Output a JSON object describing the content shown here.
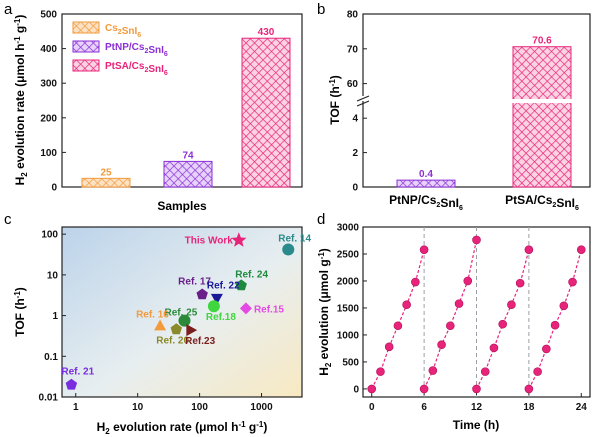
{
  "panel_labels": {
    "a": "a",
    "b": "b",
    "c": "c",
    "d": "d"
  },
  "colors": {
    "orange": "#f39a3b",
    "purple": "#8b2fd6",
    "pink": "#e8237a",
    "frame": "#222222"
  },
  "chart_data": [
    {
      "id": "a",
      "type": "bar",
      "ylabel": "H2 evolution rate (μmol h-1 g-1)",
      "xlabel": "Samples",
      "categories": [
        "Cs2SnI6",
        "PtNP/Cs2SnI6",
        "PtSA/Cs2SnI6"
      ],
      "values": [
        25,
        74,
        430
      ],
      "data_labels": [
        "25",
        "74",
        "430"
      ],
      "legend": [
        "Cs2SnI6",
        "PtNP/Cs2SnI6",
        "PtSA/Cs2SnI6"
      ],
      "legend_placement": "top-left",
      "ylim": [
        0,
        500
      ],
      "yticks": [
        "0",
        "100",
        "200",
        "300",
        "400",
        "500"
      ],
      "colors": [
        "#f39a3b",
        "#8b2fd6",
        "#e8237a"
      ],
      "grid": false
    },
    {
      "id": "b",
      "type": "bar",
      "ylabel": "TOF (h-1)",
      "categories": [
        "PtNP/Cs2SnI6",
        "PtSA/Cs2SnI6"
      ],
      "values": [
        0.4,
        70.6
      ],
      "data_labels": [
        "0.4",
        "70.6"
      ],
      "axis_break": true,
      "yticks_lower": [
        "0",
        "2",
        "4"
      ],
      "yticks_upper": [
        "60",
        "70",
        "80"
      ],
      "ylim_lower": [
        0,
        5
      ],
      "ylim_upper": [
        55,
        80
      ],
      "colors": [
        "#8b2fd6",
        "#e8237a"
      ],
      "grid": false
    },
    {
      "id": "c",
      "type": "scatter",
      "xscale": "log",
      "yscale": "log",
      "xlabel": "H2 evolution rate (μmol h-1 g-1)",
      "ylabel": "TOF (h-1)",
      "xticks": [
        "1",
        "10",
        "100",
        "1000"
      ],
      "yticks": [
        "0.01",
        "0.1",
        "1",
        "10",
        "100"
      ],
      "xlim": [
        0.6,
        4500
      ],
      "ylim": [
        0.01,
        150
      ],
      "points": [
        {
          "label": "This Work",
          "x": 430,
          "y": 70.6,
          "shape": "star",
          "color": "#e8237a"
        },
        {
          "label": "Ref. 14",
          "x": 2700,
          "y": 42,
          "shape": "circle",
          "color": "#2a8a8c"
        },
        {
          "label": "Ref. 24",
          "x": 470,
          "y": 5.5,
          "shape": "pentagon",
          "color": "#1e8a3e"
        },
        {
          "label": "Ref. 17",
          "x": 110,
          "y": 3.3,
          "shape": "pentagon",
          "color": "#6a1e8a"
        },
        {
          "label": "Ref. 22",
          "x": 190,
          "y": 2.6,
          "shape": "triangle-down",
          "color": "#1a1a99"
        },
        {
          "label": "Ref.18",
          "x": 170,
          "y": 1.7,
          "shape": "circle",
          "color": "#3fd63f"
        },
        {
          "label": "Ref.15",
          "x": 560,
          "y": 1.5,
          "shape": "diamond",
          "color": "#e44be4"
        },
        {
          "label": "Ref. 25",
          "x": 57,
          "y": 0.75,
          "shape": "circle",
          "color": "#2a8a3a"
        },
        {
          "label": "Ref. 16",
          "x": 23,
          "y": 0.57,
          "shape": "triangle-up",
          "color": "#f39a3b"
        },
        {
          "label": "Ref. 20",
          "x": 42,
          "y": 0.46,
          "shape": "pentagon",
          "color": "#8b8a2a"
        },
        {
          "label": "Ref.23",
          "x": 73,
          "y": 0.44,
          "shape": "triangle-right",
          "color": "#7a1e1e"
        },
        {
          "label": "Ref. 21",
          "x": 0.85,
          "y": 0.02,
          "shape": "pentagon",
          "color": "#7a2de0"
        }
      ]
    },
    {
      "id": "d",
      "type": "scatter",
      "xlabel": "Time (h)",
      "ylabel": "H2 evolution (μmol g-1)",
      "xlim": [
        -1,
        25
      ],
      "ylim": [
        -150,
        3000
      ],
      "xticks": [
        "0",
        "6",
        "12",
        "18",
        "24"
      ],
      "yticks": [
        "0",
        "500",
        "1000",
        "1500",
        "2000",
        "2500",
        "3000"
      ],
      "cycle_separators": [
        6,
        12,
        18
      ],
      "color": "#e8237a",
      "series": [
        {
          "x": [
            0,
            1,
            2,
            3,
            4,
            5,
            6
          ],
          "values": [
            0,
            320,
            780,
            1170,
            1560,
            1980,
            2580
          ]
        },
        {
          "x": [
            6,
            7,
            8,
            9,
            10,
            11,
            12
          ],
          "values": [
            0,
            340,
            820,
            1170,
            1580,
            2000,
            2760
          ]
        },
        {
          "x": [
            12,
            13,
            14,
            15,
            16,
            17,
            18
          ],
          "values": [
            0,
            320,
            760,
            1200,
            1560,
            1960,
            2580
          ]
        },
        {
          "x": [
            18,
            19,
            20,
            21,
            22,
            23,
            24
          ],
          "values": [
            0,
            320,
            740,
            1180,
            1540,
            1980,
            2580
          ]
        }
      ]
    }
  ]
}
